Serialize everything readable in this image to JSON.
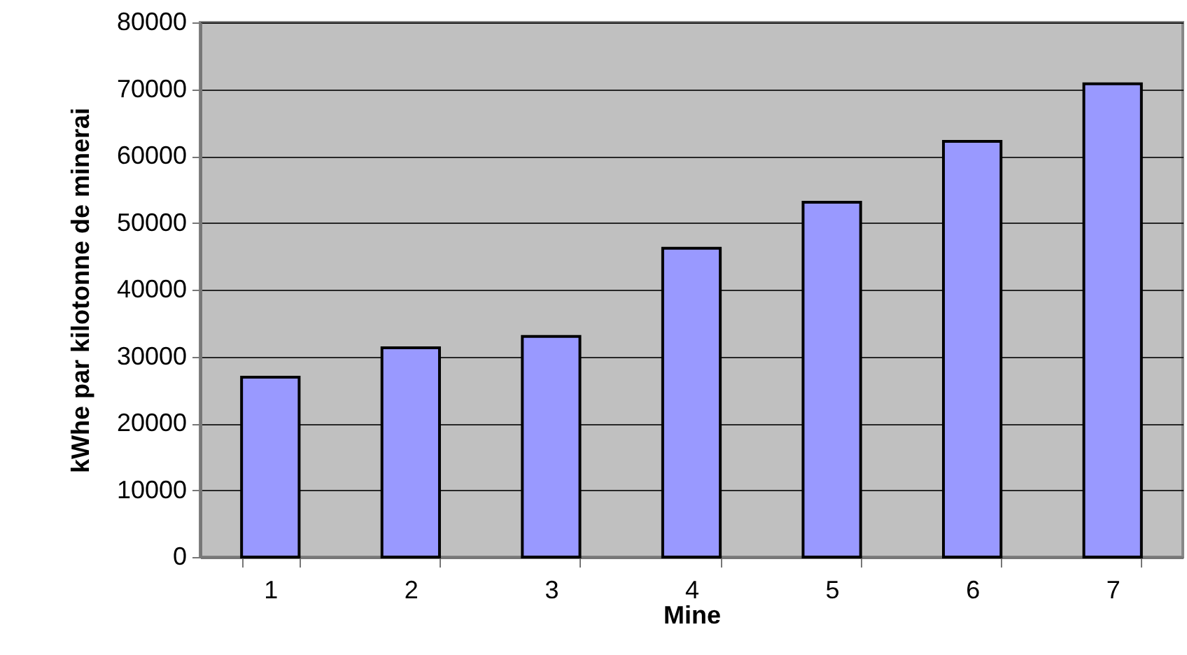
{
  "chart_data": {
    "type": "bar",
    "xlabel": "Mine",
    "ylabel": "kWhe par kilotonne de minerai",
    "categories": [
      "1",
      "2",
      "3",
      "4",
      "5",
      "6",
      "7"
    ],
    "values": [
      26900,
      31300,
      33000,
      46200,
      53100,
      62200,
      70800
    ],
    "color": "#9999ff",
    "ylim": [
      0,
      80000
    ],
    "yticks": [
      0,
      10000,
      20000,
      30000,
      40000,
      50000,
      60000,
      70000,
      80000
    ],
    "grid": "y"
  }
}
